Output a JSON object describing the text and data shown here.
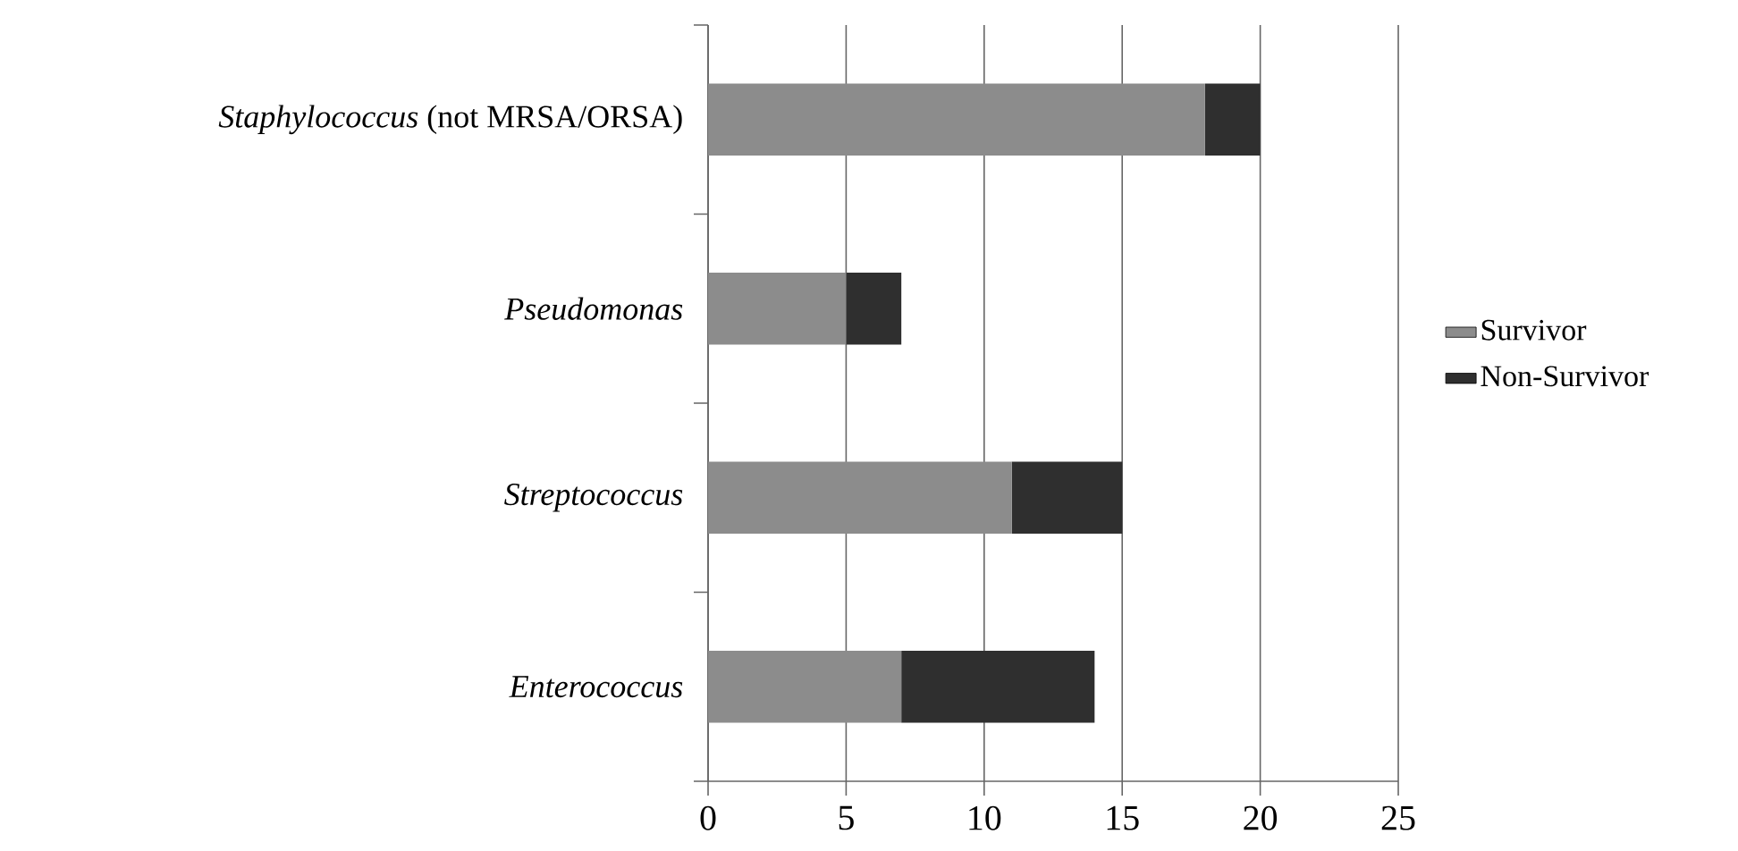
{
  "chart_data": {
    "type": "bar",
    "orientation": "horizontal",
    "stacked": true,
    "categories": [
      "*Staphylococcus* (not MRSA/ORSA)",
      "*Pseudomonas*",
      "*Streptococcus*",
      "*Enterococcus*"
    ],
    "series": [
      {
        "name": "Survivor",
        "color": "#8c8c8c",
        "values": [
          18,
          5,
          11,
          7
        ]
      },
      {
        "name": "Non-Survivor",
        "color": "#2f2f2f",
        "values": [
          2,
          2,
          4,
          7
        ]
      }
    ],
    "xlim": [
      0,
      25
    ],
    "xticks": [
      0,
      5,
      10,
      15,
      20,
      25
    ],
    "grid": "x",
    "legend": "right"
  }
}
